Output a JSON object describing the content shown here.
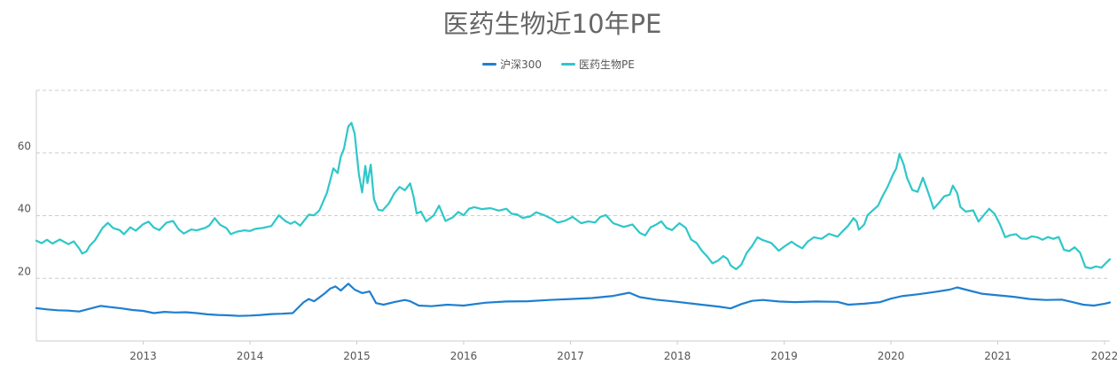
{
  "title": "医药生物近10年PE",
  "chart_data": {
    "type": "line",
    "title": "医药生物近10年PE",
    "xlabel": "",
    "ylabel": "",
    "x_range": [
      2012.5,
      2022.55
    ],
    "ylim": [
      0,
      80
    ],
    "yticks": [
      20,
      40,
      60
    ],
    "xticks": [
      "2013",
      "2014",
      "2015",
      "2016",
      "2017",
      "2018",
      "2019",
      "2020",
      "2021",
      "2022"
    ],
    "grid": true,
    "legend_position": "top-center",
    "series": [
      {
        "name": "沪深300",
        "color": "#1f7fd0",
        "points": [
          [
            2012.5,
            10.5
          ],
          [
            2012.6,
            10.1
          ],
          [
            2012.7,
            9.8
          ],
          [
            2012.8,
            9.7
          ],
          [
            2012.9,
            9.4
          ],
          [
            2013.0,
            10.3
          ],
          [
            2013.1,
            11.2
          ],
          [
            2013.2,
            10.8
          ],
          [
            2013.3,
            10.4
          ],
          [
            2013.4,
            9.9
          ],
          [
            2013.5,
            9.6
          ],
          [
            2013.6,
            8.9
          ],
          [
            2013.7,
            9.3
          ],
          [
            2013.8,
            9.1
          ],
          [
            2013.9,
            9.2
          ],
          [
            2014.0,
            8.9
          ],
          [
            2014.1,
            8.5
          ],
          [
            2014.2,
            8.3
          ],
          [
            2014.3,
            8.2
          ],
          [
            2014.4,
            8.0
          ],
          [
            2014.5,
            8.1
          ],
          [
            2014.6,
            8.3
          ],
          [
            2014.7,
            8.6
          ],
          [
            2014.8,
            8.7
          ],
          [
            2014.9,
            8.9
          ],
          [
            2015.0,
            12.3
          ],
          [
            2015.05,
            13.4
          ],
          [
            2015.1,
            12.7
          ],
          [
            2015.15,
            13.9
          ],
          [
            2015.2,
            15.2
          ],
          [
            2015.25,
            16.7
          ],
          [
            2015.3,
            17.4
          ],
          [
            2015.35,
            16.1
          ],
          [
            2015.42,
            18.3
          ],
          [
            2015.48,
            16.4
          ],
          [
            2015.55,
            15.3
          ],
          [
            2015.62,
            15.8
          ],
          [
            2015.68,
            12.1
          ],
          [
            2015.75,
            11.6
          ],
          [
            2015.85,
            12.4
          ],
          [
            2015.95,
            13.1
          ],
          [
            2016.0,
            12.7
          ],
          [
            2016.08,
            11.3
          ],
          [
            2016.2,
            11.1
          ],
          [
            2016.35,
            11.6
          ],
          [
            2016.5,
            11.3
          ],
          [
            2016.7,
            12.2
          ],
          [
            2016.9,
            12.6
          ],
          [
            2017.1,
            12.7
          ],
          [
            2017.3,
            13.1
          ],
          [
            2017.5,
            13.4
          ],
          [
            2017.7,
            13.7
          ],
          [
            2017.9,
            14.4
          ],
          [
            2018.05,
            15.4
          ],
          [
            2018.15,
            14.0
          ],
          [
            2018.3,
            13.2
          ],
          [
            2018.5,
            12.5
          ],
          [
            2018.7,
            11.7
          ],
          [
            2018.9,
            10.9
          ],
          [
            2019.0,
            10.4
          ],
          [
            2019.1,
            11.8
          ],
          [
            2019.2,
            12.8
          ],
          [
            2019.3,
            13.1
          ],
          [
            2019.45,
            12.6
          ],
          [
            2019.6,
            12.4
          ],
          [
            2019.8,
            12.6
          ],
          [
            2020.0,
            12.5
          ],
          [
            2020.1,
            11.6
          ],
          [
            2020.25,
            11.9
          ],
          [
            2020.4,
            12.4
          ],
          [
            2020.5,
            13.5
          ],
          [
            2020.6,
            14.3
          ],
          [
            2020.75,
            14.9
          ],
          [
            2020.9,
            15.6
          ],
          [
            2021.05,
            16.4
          ],
          [
            2021.12,
            17.1
          ],
          [
            2021.2,
            16.4
          ],
          [
            2021.35,
            15.1
          ],
          [
            2021.5,
            14.6
          ],
          [
            2021.65,
            14.1
          ],
          [
            2021.8,
            13.4
          ],
          [
            2021.95,
            13.1
          ],
          [
            2022.1,
            13.2
          ],
          [
            2022.2,
            12.4
          ],
          [
            2022.3,
            11.6
          ],
          [
            2022.4,
            11.3
          ],
          [
            2022.5,
            11.9
          ],
          [
            2022.55,
            12.3
          ]
        ]
      },
      {
        "name": "医药生物PE",
        "color": "#2ec7c9",
        "points": [
          [
            2012.5,
            32.0
          ],
          [
            2012.55,
            31.2
          ],
          [
            2012.6,
            32.3
          ],
          [
            2012.65,
            31.1
          ],
          [
            2012.72,
            32.4
          ],
          [
            2012.8,
            30.9
          ],
          [
            2012.85,
            31.8
          ],
          [
            2012.9,
            29.6
          ],
          [
            2012.93,
            27.9
          ],
          [
            2012.97,
            28.6
          ],
          [
            2013.0,
            30.4
          ],
          [
            2013.05,
            32.2
          ],
          [
            2013.12,
            36.1
          ],
          [
            2013.17,
            37.7
          ],
          [
            2013.22,
            36.0
          ],
          [
            2013.28,
            35.4
          ],
          [
            2013.32,
            34.1
          ],
          [
            2013.38,
            36.3
          ],
          [
            2013.43,
            35.2
          ],
          [
            2013.5,
            37.3
          ],
          [
            2013.55,
            38.1
          ],
          [
            2013.6,
            36.2
          ],
          [
            2013.65,
            35.4
          ],
          [
            2013.72,
            37.8
          ],
          [
            2013.78,
            38.3
          ],
          [
            2013.83,
            35.7
          ],
          [
            2013.88,
            34.3
          ],
          [
            2013.95,
            35.6
          ],
          [
            2014.0,
            35.3
          ],
          [
            2014.08,
            36.1
          ],
          [
            2014.12,
            36.9
          ],
          [
            2014.17,
            39.2
          ],
          [
            2014.22,
            37.1
          ],
          [
            2014.28,
            36.0
          ],
          [
            2014.32,
            34.1
          ],
          [
            2014.38,
            34.9
          ],
          [
            2014.45,
            35.3
          ],
          [
            2014.5,
            35.1
          ],
          [
            2014.55,
            35.8
          ],
          [
            2014.62,
            36.1
          ],
          [
            2014.7,
            36.7
          ],
          [
            2014.77,
            40.1
          ],
          [
            2014.83,
            38.3
          ],
          [
            2014.88,
            37.4
          ],
          [
            2014.92,
            38.1
          ],
          [
            2014.97,
            36.8
          ],
          [
            2015.0,
            38.1
          ],
          [
            2015.05,
            40.3
          ],
          [
            2015.1,
            40.1
          ],
          [
            2015.15,
            41.7
          ],
          [
            2015.22,
            47.3
          ],
          [
            2015.28,
            55.1
          ],
          [
            2015.32,
            53.6
          ],
          [
            2015.35,
            58.8
          ],
          [
            2015.38,
            61.4
          ],
          [
            2015.42,
            68.5
          ],
          [
            2015.45,
            69.6
          ],
          [
            2015.48,
            66.1
          ],
          [
            2015.52,
            53.1
          ],
          [
            2015.55,
            47.4
          ],
          [
            2015.58,
            55.9
          ],
          [
            2015.6,
            50.4
          ],
          [
            2015.63,
            56.3
          ],
          [
            2015.66,
            45.3
          ],
          [
            2015.7,
            41.9
          ],
          [
            2015.74,
            41.6
          ],
          [
            2015.8,
            43.9
          ],
          [
            2015.85,
            47.1
          ],
          [
            2015.9,
            49.2
          ],
          [
            2015.95,
            48.1
          ],
          [
            2016.0,
            50.3
          ],
          [
            2016.03,
            46.2
          ],
          [
            2016.06,
            40.7
          ],
          [
            2016.1,
            41.3
          ],
          [
            2016.15,
            38.2
          ],
          [
            2016.22,
            40.1
          ],
          [
            2016.27,
            43.2
          ],
          [
            2016.33,
            38.3
          ],
          [
            2016.4,
            39.5
          ],
          [
            2016.45,
            41.2
          ],
          [
            2016.5,
            40.1
          ],
          [
            2016.55,
            42.2
          ],
          [
            2016.6,
            42.7
          ],
          [
            2016.67,
            42.1
          ],
          [
            2016.75,
            42.4
          ],
          [
            2016.83,
            41.6
          ],
          [
            2016.9,
            42.2
          ],
          [
            2016.95,
            40.6
          ],
          [
            2017.0,
            40.4
          ],
          [
            2017.05,
            39.3
          ],
          [
            2017.12,
            39.7
          ],
          [
            2017.18,
            41.1
          ],
          [
            2017.25,
            40.2
          ],
          [
            2017.32,
            39.1
          ],
          [
            2017.38,
            37.8
          ],
          [
            2017.45,
            38.4
          ],
          [
            2017.52,
            39.6
          ],
          [
            2017.6,
            37.6
          ],
          [
            2017.67,
            38.2
          ],
          [
            2017.73,
            37.8
          ],
          [
            2017.78,
            39.6
          ],
          [
            2017.83,
            40.2
          ],
          [
            2017.9,
            37.6
          ],
          [
            2018.0,
            36.4
          ],
          [
            2018.08,
            37.2
          ],
          [
            2018.15,
            34.5
          ],
          [
            2018.2,
            33.7
          ],
          [
            2018.25,
            36.3
          ],
          [
            2018.3,
            37.1
          ],
          [
            2018.35,
            38.2
          ],
          [
            2018.4,
            36.1
          ],
          [
            2018.45,
            35.4
          ],
          [
            2018.52,
            37.6
          ],
          [
            2018.58,
            36.1
          ],
          [
            2018.63,
            32.4
          ],
          [
            2018.68,
            31.3
          ],
          [
            2018.73,
            28.8
          ],
          [
            2018.78,
            27.0
          ],
          [
            2018.83,
            24.8
          ],
          [
            2018.88,
            25.6
          ],
          [
            2018.93,
            27.1
          ],
          [
            2018.97,
            26.2
          ],
          [
            2019.0,
            24.1
          ],
          [
            2019.05,
            22.9
          ],
          [
            2019.1,
            24.4
          ],
          [
            2019.15,
            28.1
          ],
          [
            2019.2,
            30.3
          ],
          [
            2019.25,
            33.1
          ],
          [
            2019.3,
            32.2
          ],
          [
            2019.38,
            31.3
          ],
          [
            2019.45,
            28.8
          ],
          [
            2019.5,
            30.1
          ],
          [
            2019.57,
            31.7
          ],
          [
            2019.62,
            30.5
          ],
          [
            2019.67,
            29.6
          ],
          [
            2019.72,
            31.7
          ],
          [
            2019.78,
            33.1
          ],
          [
            2019.85,
            32.6
          ],
          [
            2019.92,
            34.2
          ],
          [
            2020.0,
            33.3
          ],
          [
            2020.05,
            35.1
          ],
          [
            2020.1,
            36.8
          ],
          [
            2020.15,
            39.2
          ],
          [
            2020.18,
            38.1
          ],
          [
            2020.2,
            35.5
          ],
          [
            2020.25,
            37.2
          ],
          [
            2020.28,
            40.1
          ],
          [
            2020.33,
            41.7
          ],
          [
            2020.38,
            43.2
          ],
          [
            2020.42,
            46.1
          ],
          [
            2020.47,
            49.3
          ],
          [
            2020.52,
            53.2
          ],
          [
            2020.55,
            55.1
          ],
          [
            2020.58,
            59.7
          ],
          [
            2020.62,
            56.3
          ],
          [
            2020.65,
            52.1
          ],
          [
            2020.7,
            48.2
          ],
          [
            2020.75,
            47.6
          ],
          [
            2020.8,
            52.1
          ],
          [
            2020.85,
            47.3
          ],
          [
            2020.9,
            42.2
          ],
          [
            2020.95,
            44.1
          ],
          [
            2021.0,
            46.2
          ],
          [
            2021.05,
            46.7
          ],
          [
            2021.08,
            49.6
          ],
          [
            2021.12,
            47.2
          ],
          [
            2021.15,
            42.8
          ],
          [
            2021.2,
            41.3
          ],
          [
            2021.27,
            41.7
          ],
          [
            2021.32,
            38.1
          ],
          [
            2021.37,
            40.2
          ],
          [
            2021.42,
            42.2
          ],
          [
            2021.47,
            40.6
          ],
          [
            2021.52,
            37.3
          ],
          [
            2021.57,
            33.1
          ],
          [
            2021.62,
            33.8
          ],
          [
            2021.67,
            34.1
          ],
          [
            2021.72,
            32.7
          ],
          [
            2021.77,
            32.6
          ],
          [
            2021.82,
            33.4
          ],
          [
            2021.87,
            33.1
          ],
          [
            2021.92,
            32.3
          ],
          [
            2021.97,
            33.2
          ],
          [
            2022.02,
            32.6
          ],
          [
            2022.07,
            33.2
          ],
          [
            2022.12,
            29.1
          ],
          [
            2022.17,
            28.7
          ],
          [
            2022.22,
            29.9
          ],
          [
            2022.27,
            28.2
          ],
          [
            2022.32,
            23.6
          ],
          [
            2022.37,
            23.2
          ],
          [
            2022.42,
            23.8
          ],
          [
            2022.47,
            23.4
          ],
          [
            2022.52,
            25.1
          ],
          [
            2022.55,
            26.1
          ]
        ]
      }
    ]
  }
}
